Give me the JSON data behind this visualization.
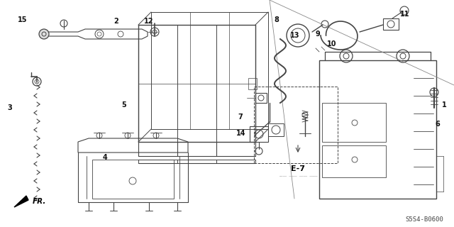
{
  "bg_color": "#ffffff",
  "line_color": "#444444",
  "part_labels": [
    [
      "1",
      626,
      148
    ],
    [
      "2",
      164,
      30
    ],
    [
      "3",
      14,
      152
    ],
    [
      "4",
      148,
      222
    ],
    [
      "5",
      175,
      148
    ],
    [
      "6",
      617,
      175
    ],
    [
      "7",
      339,
      165
    ],
    [
      "8",
      390,
      28
    ],
    [
      "9",
      448,
      48
    ],
    [
      "10",
      468,
      62
    ],
    [
      "11",
      571,
      20
    ],
    [
      "12",
      210,
      30
    ],
    [
      "13",
      416,
      50
    ],
    [
      "14",
      340,
      188
    ],
    [
      "15",
      32,
      28
    ]
  ],
  "bottom_left_label": "FR.",
  "bottom_center_label": "E-7",
  "bottom_right_label": "S5S4-B0600"
}
